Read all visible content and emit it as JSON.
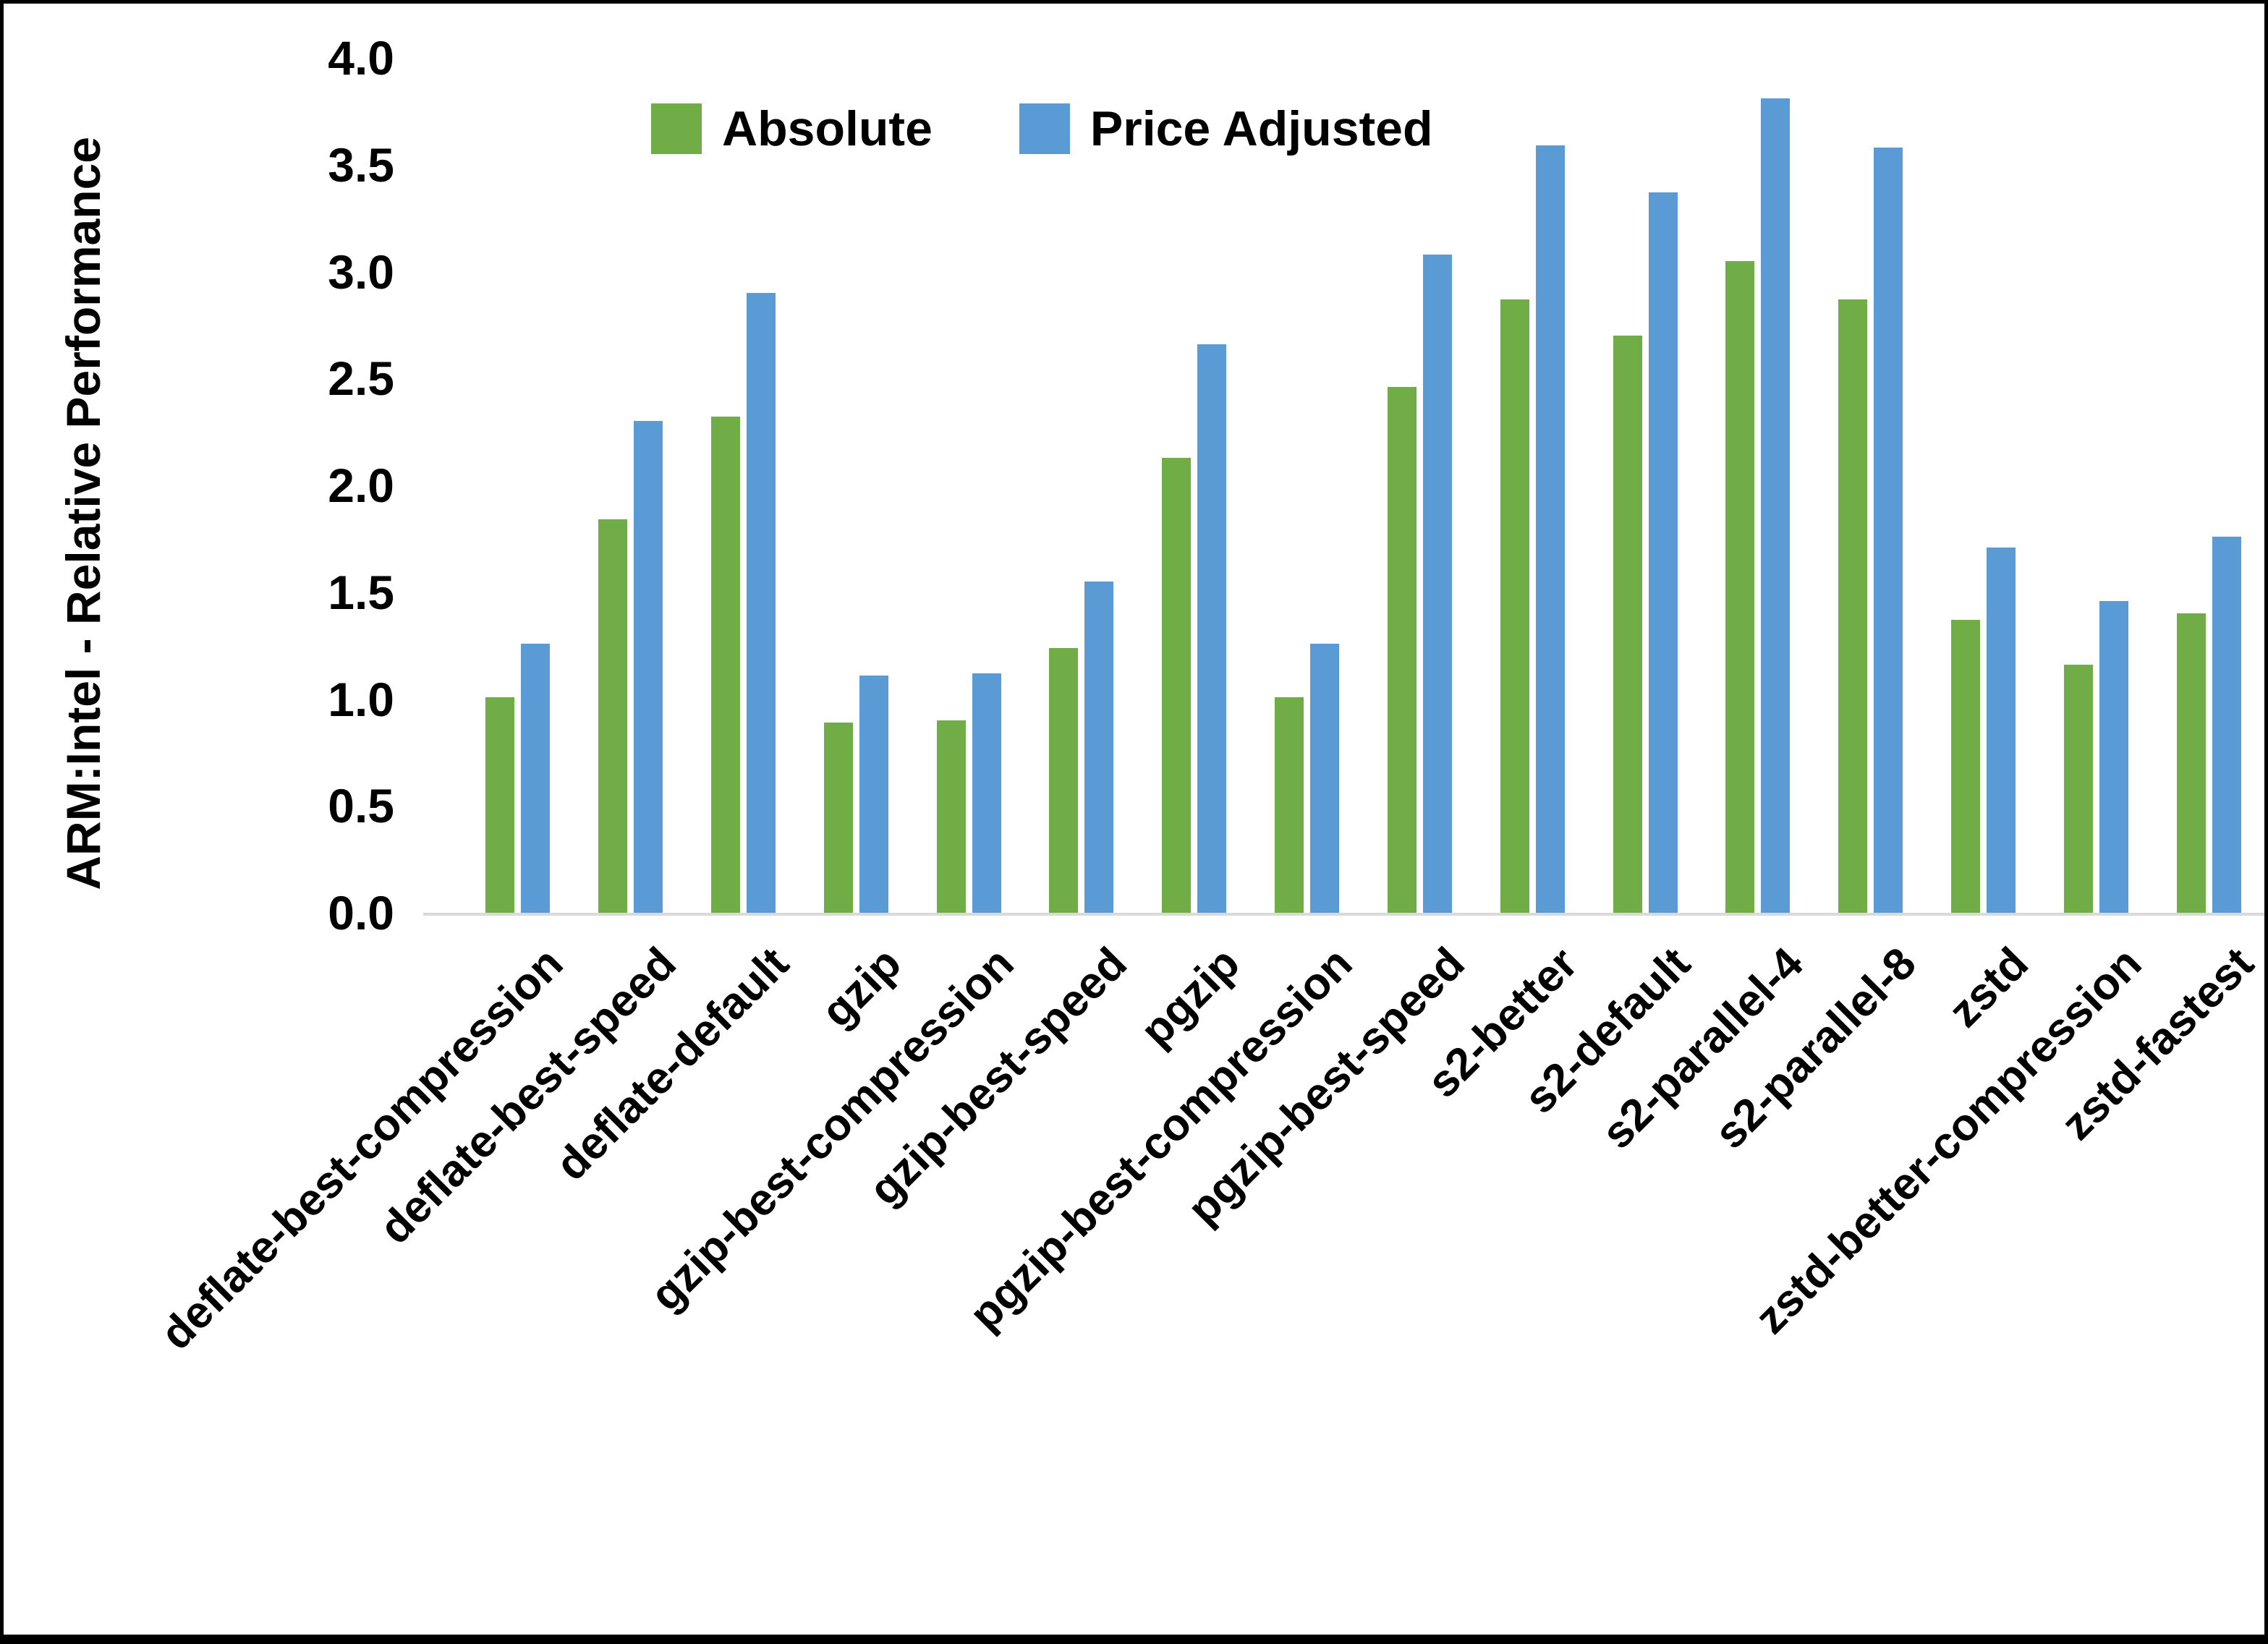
{
  "chart_data": {
    "type": "bar",
    "title": "",
    "ylabel": "ARM:Intel - Relative Performance",
    "xlabel": "",
    "ylim": [
      0.0,
      4.0
    ],
    "ytick_step": 0.5,
    "yticks": [
      "0.0",
      "0.5",
      "1.0",
      "1.5",
      "2.0",
      "2.5",
      "3.0",
      "3.5",
      "4.0"
    ],
    "grid": false,
    "legend_position": "top-center",
    "axis_line_color": "#D9D9D9",
    "text_color": "#000000",
    "categories": [
      "deflate-best-compression",
      "deflate-best-speed",
      "deflate-default",
      "gzip",
      "gzip-best-compression",
      "gzip-best-speed",
      "pgzip",
      "pgzip-best-compression",
      "pgzip-best-speed",
      "s2-better",
      "s2-default",
      "s2-parallel-4",
      "s2-parallel-8",
      "zstd",
      "zstd-better-compression",
      "zstd-fastest"
    ],
    "series": [
      {
        "name": "Absolute",
        "color": "#70AD47",
        "values": [
          1.01,
          1.84,
          2.32,
          0.89,
          0.9,
          1.24,
          2.13,
          1.01,
          2.46,
          2.87,
          2.7,
          3.05,
          2.87,
          1.37,
          1.16,
          1.4
        ]
      },
      {
        "name": "Price Adjusted",
        "color": "#5B9BD5",
        "values": [
          1.26,
          2.3,
          2.9,
          1.11,
          1.12,
          1.55,
          2.66,
          1.26,
          3.08,
          3.59,
          3.37,
          3.81,
          3.58,
          1.71,
          1.46,
          1.76
        ]
      }
    ]
  }
}
